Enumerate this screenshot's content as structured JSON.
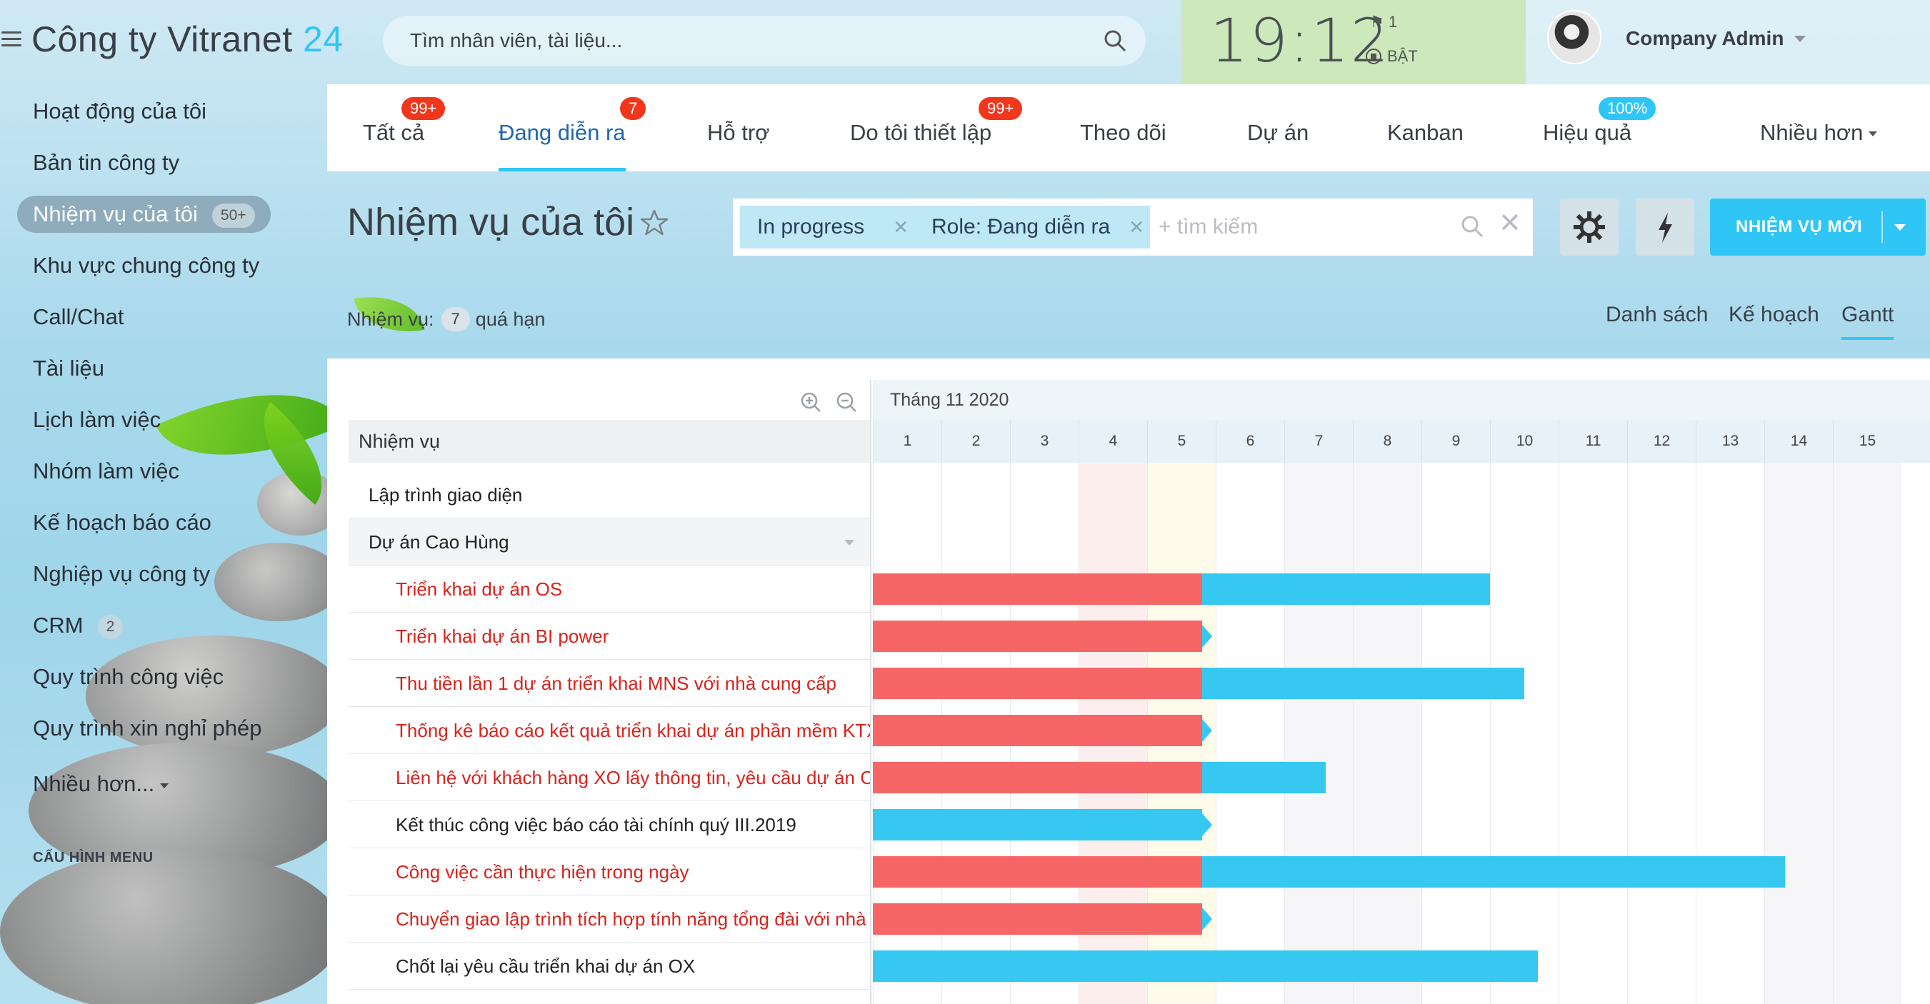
{
  "app": {
    "company_name": "Công ty Vitranet",
    "company_suffix": "24"
  },
  "search": {
    "placeholder": "Tìm nhân viên, tài liệu..."
  },
  "clock": {
    "time": "19:12",
    "flag_count": "1",
    "status": "BẬT"
  },
  "user": {
    "name": "Company Admin"
  },
  "sidebar": {
    "items": [
      {
        "label": "Hoạt động của tôi"
      },
      {
        "label": "Bản tin công ty"
      },
      {
        "label": "Nhiệm vụ của tôi",
        "badge": "50+"
      },
      {
        "label": "Khu vực chung công ty"
      },
      {
        "label": "Call/Chat"
      },
      {
        "label": "Tài liệu"
      },
      {
        "label": "Lịch làm việc"
      },
      {
        "label": "Nhóm làm việc"
      },
      {
        "label": "Kế hoạch báo cáo"
      },
      {
        "label": "Nghiệp vụ công ty"
      },
      {
        "label": "CRM",
        "badge": "2"
      },
      {
        "label": "Quy trình công việc"
      },
      {
        "label": "Quy trình xin nghỉ phép"
      },
      {
        "label": "Nhiều hơn..."
      }
    ],
    "config_label": "CẤU HÌNH MENU"
  },
  "tabs": [
    {
      "label": "Tất cả",
      "badge": "99+"
    },
    {
      "label": "Đang diễn ra",
      "badge": "7"
    },
    {
      "label": "Hỗ trợ"
    },
    {
      "label": "Do tôi thiết lập",
      "badge": "99+"
    },
    {
      "label": "Theo dõi"
    },
    {
      "label": "Dự án"
    },
    {
      "label": "Kanban"
    },
    {
      "label": "Hiệu quả",
      "badge": "100%"
    },
    {
      "label": "Nhiều hơn"
    }
  ],
  "page": {
    "title": "Nhiệm vụ của tôi"
  },
  "filter": {
    "chips": [
      "In progress",
      "Role: Đang diễn ra"
    ],
    "placeholder": "+ tìm kiếm"
  },
  "new_task_button": "NHIỆM VỤ MỚI",
  "counter": {
    "prefix": "Nhiệm vụ:",
    "count": "7",
    "suffix": "quá hạn"
  },
  "views": [
    "Danh sách",
    "Kế hoạch",
    "Gantt"
  ],
  "gantt": {
    "column_header": "Nhiệm vụ",
    "month": "Tháng 11 2020",
    "days": [
      "1",
      "2",
      "3",
      "4",
      "5",
      "6",
      "7",
      "8",
      "9",
      "10",
      "11",
      "12",
      "13",
      "14",
      "15"
    ],
    "rows": [
      {
        "label": "Lập trình giao diện",
        "kind": "group"
      },
      {
        "label": "Dự án Cao Hùng",
        "kind": "group"
      },
      {
        "label": "Triển khai dự án OS",
        "kind": "overdue",
        "start_day": 1,
        "overdue_until_day": 5.8,
        "end_day": 10.0
      },
      {
        "label": "Triển khai dự án BI power",
        "kind": "overdue",
        "start_day": 1,
        "overdue_until_day": 5.8,
        "end_day": 5.8
      },
      {
        "label": "Thu tiền lần 1 dự án triển khai MNS với nhà cung cấp",
        "kind": "overdue",
        "start_day": 1,
        "overdue_until_day": 5.8,
        "end_day": 10.5
      },
      {
        "label": "Thống kê báo cáo kết quả triển khai dự án phần mềm KTX",
        "kind": "overdue",
        "start_day": 1,
        "overdue_until_day": 5.8,
        "end_day": 5.8
      },
      {
        "label": "Liên hệ với khách hàng XO lấy thông tin, yêu cầu dự án CRM",
        "kind": "overdue",
        "start_day": 1,
        "overdue_until_day": 5.8,
        "end_day": 7.6
      },
      {
        "label": "Kết thúc công việc báo cáo tài chính quý III.2019",
        "kind": "normal",
        "start_day": 1,
        "overdue_until_day": 1,
        "end_day": 5.8
      },
      {
        "label": "Công việc cần thực hiện trong ngày",
        "kind": "overdue",
        "start_day": 1,
        "overdue_until_day": 5.8,
        "end_day": 14.3
      },
      {
        "label": "Chuyển giao lập trình tích hợp tính năng tổng đài với nhà cung cấp",
        "kind": "overdue",
        "start_day": 1,
        "overdue_until_day": 5.8,
        "end_day": 5.8
      },
      {
        "label": "Chốt lại yêu cầu triển khai dự án OX",
        "kind": "normal",
        "start_day": 1,
        "overdue_until_day": 1,
        "end_day": 10.7
      }
    ]
  },
  "colors": {
    "accent": "#2fc6f6",
    "overdue_bar": "#f66666",
    "bar": "#36c8f1",
    "badge_red": "#f0371b"
  }
}
